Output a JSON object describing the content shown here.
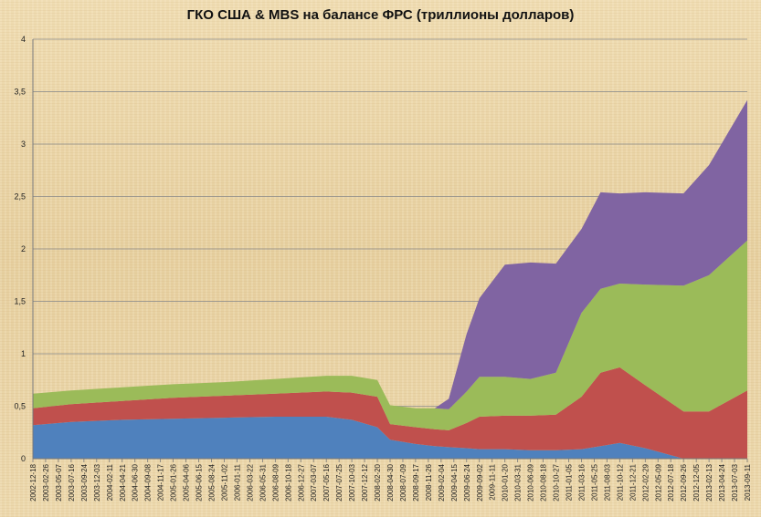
{
  "chart_data": {
    "type": "area",
    "stacked": true,
    "title": "ГКО США & MBS на балансе ФРС  (триллионы долларов)",
    "xlabel": "",
    "ylabel": "",
    "ylim": [
      0,
      4
    ],
    "yticks": [
      "0",
      "0,5",
      "1",
      "1,5",
      "2",
      "2,5",
      "3",
      "3,5",
      "4"
    ],
    "grid": true,
    "legend": "none",
    "x_ticks": [
      "2002-12-18",
      "2003-02-26",
      "2003-05-07",
      "2003-07-16",
      "2003-09-24",
      "2003-12-03",
      "2004-02-11",
      "2004-04-21",
      "2004-06-30",
      "2004-09-08",
      "2004-11-17",
      "2005-01-26",
      "2005-04-06",
      "2005-06-15",
      "2005-08-24",
      "2005-11-02",
      "2006-01-11",
      "2006-03-22",
      "2006-05-31",
      "2006-08-09",
      "2006-10-18",
      "2006-12-27",
      "2007-03-07",
      "2007-05-16",
      "2007-07-25",
      "2007-10-03",
      "2007-12-12",
      "2008-02-20",
      "2008-04-30",
      "2008-07-09",
      "2008-09-17",
      "2008-11-26",
      "2009-02-04",
      "2009-04-15",
      "2009-06-24",
      "2009-09-02",
      "2009-11-11",
      "2010-01-20",
      "2010-03-31",
      "2010-06-09",
      "2010-08-18",
      "2010-10-27",
      "2011-01-05",
      "2011-03-16",
      "2011-05-25",
      "2011-08-03",
      "2011-10-12",
      "2011-12-21",
      "2012-02-29",
      "2012-05-09",
      "2012-07-18",
      "2012-09-26",
      "2012-12-05",
      "2013-02-13",
      "2013-04-24",
      "2013-07-03",
      "2013-09-11"
    ],
    "x": [
      "2002-12-18",
      "2003-07-16",
      "2004-04-21",
      "2005-01-26",
      "2005-11-02",
      "2006-08-09",
      "2007-05-16",
      "2007-10-03",
      "2008-02-20",
      "2008-04-30",
      "2008-09-17",
      "2008-12-31",
      "2009-03-18",
      "2009-06-24",
      "2009-09-02",
      "2010-01-20",
      "2010-06-09",
      "2010-10-27",
      "2011-03-16",
      "2011-06-29",
      "2011-10-12",
      "2012-02-29",
      "2012-09-26",
      "2013-02-13",
      "2013-09-11"
    ],
    "series": [
      {
        "color": "#4f81bd",
        "values": [
          0.32,
          0.35,
          0.37,
          0.38,
          0.39,
          0.4,
          0.4,
          0.37,
          0.3,
          0.18,
          0.14,
          0.12,
          0.11,
          0.1,
          0.09,
          0.09,
          0.08,
          0.08,
          0.09,
          0.12,
          0.15,
          0.1,
          0.0,
          0.0,
          0.0
        ]
      },
      {
        "color": "#c0504d",
        "values": [
          0.16,
          0.17,
          0.18,
          0.2,
          0.21,
          0.22,
          0.24,
          0.26,
          0.29,
          0.15,
          0.16,
          0.16,
          0.16,
          0.24,
          0.31,
          0.32,
          0.33,
          0.34,
          0.5,
          0.7,
          0.72,
          0.6,
          0.45,
          0.45,
          0.65
        ]
      },
      {
        "color": "#9bbb59",
        "values": [
          0.14,
          0.13,
          0.13,
          0.13,
          0.13,
          0.14,
          0.15,
          0.16,
          0.16,
          0.18,
          0.18,
          0.2,
          0.2,
          0.3,
          0.38,
          0.37,
          0.35,
          0.4,
          0.8,
          0.8,
          0.8,
          0.96,
          1.2,
          1.3,
          1.43
        ]
      },
      {
        "color": "#8064a2",
        "values": [
          0,
          0,
          0,
          0,
          0,
          0,
          0,
          0,
          0,
          0,
          0,
          0,
          0.1,
          0.55,
          0.75,
          1.07,
          1.11,
          1.04,
          0.8,
          0.92,
          0.86,
          0.88,
          0.88,
          1.05,
          1.34
        ]
      }
    ]
  }
}
